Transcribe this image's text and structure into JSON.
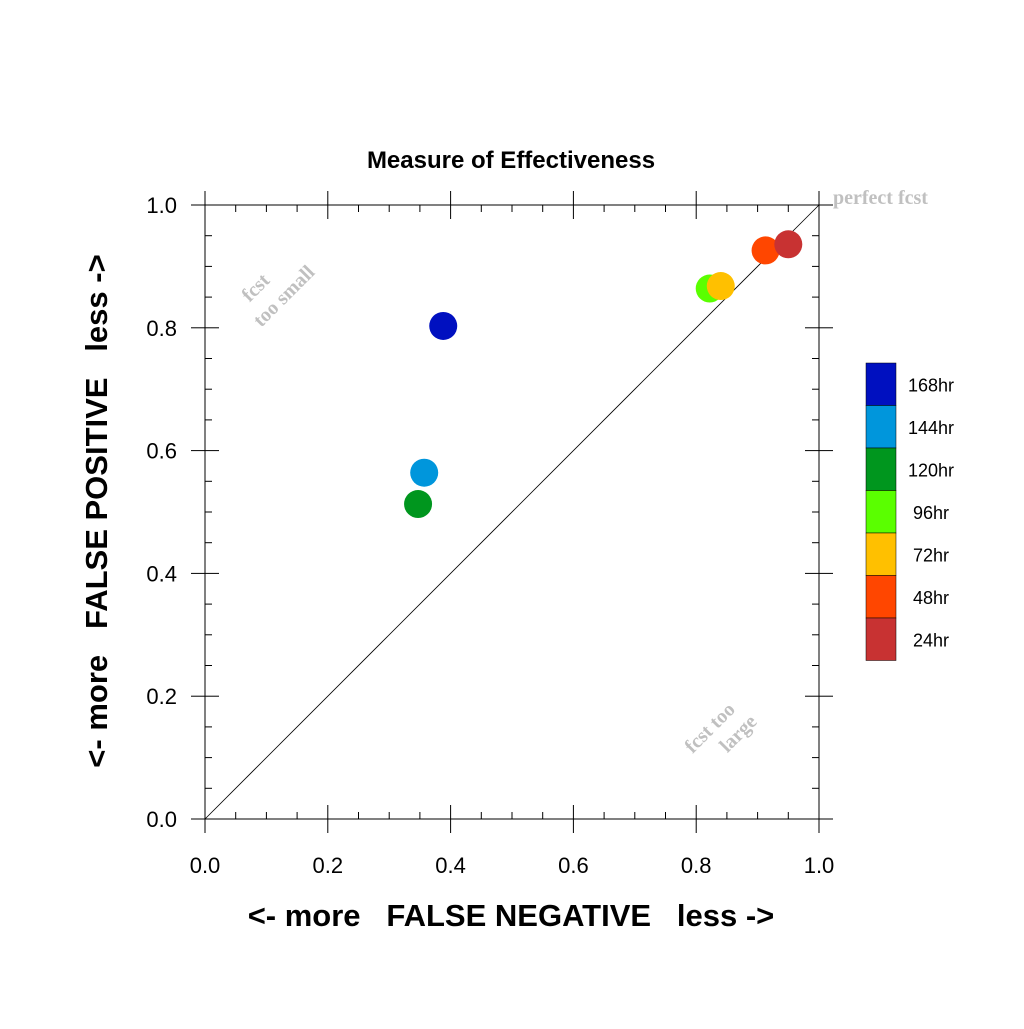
{
  "chart_data": {
    "type": "scatter",
    "title": "Measure of Effectiveness",
    "xlabel": "<- more   FALSE NEGATIVE   less ->",
    "ylabel": "<- more   FALSE POSITIVE   less ->",
    "xlim": [
      0,
      1
    ],
    "ylim": [
      0,
      1
    ],
    "xticks": [
      "0.0",
      "0.2",
      "0.4",
      "0.6",
      "0.8",
      "1.0"
    ],
    "yticks": [
      "0.0",
      "0.2",
      "0.4",
      "0.6",
      "0.8",
      "1.0"
    ],
    "grid": false,
    "diagonal_line": true,
    "legend_position": "right",
    "annotations": [
      {
        "text": "perfect fcst"
      },
      {
        "text": "fcst"
      },
      {
        "text": "too small"
      },
      {
        "text": "fcst too"
      },
      {
        "text": "large"
      }
    ],
    "series": [
      {
        "name": "168hr",
        "color": "#0010c0",
        "x": 0.388,
        "y": 0.803
      },
      {
        "name": "144hr",
        "color": "#0096dc",
        "x": 0.357,
        "y": 0.564
      },
      {
        "name": "120hr",
        "color": "#00961e",
        "x": 0.347,
        "y": 0.513
      },
      {
        "name": "96hr",
        "color": "#5aff00",
        "x": 0.822,
        "y": 0.864
      },
      {
        "name": "72hr",
        "color": "#ffc000",
        "x": 0.84,
        "y": 0.868
      },
      {
        "name": "48hr",
        "color": "#ff4600",
        "x": 0.913,
        "y": 0.926
      },
      {
        "name": "24hr",
        "color": "#c83232",
        "x": 0.95,
        "y": 0.936
      }
    ]
  }
}
